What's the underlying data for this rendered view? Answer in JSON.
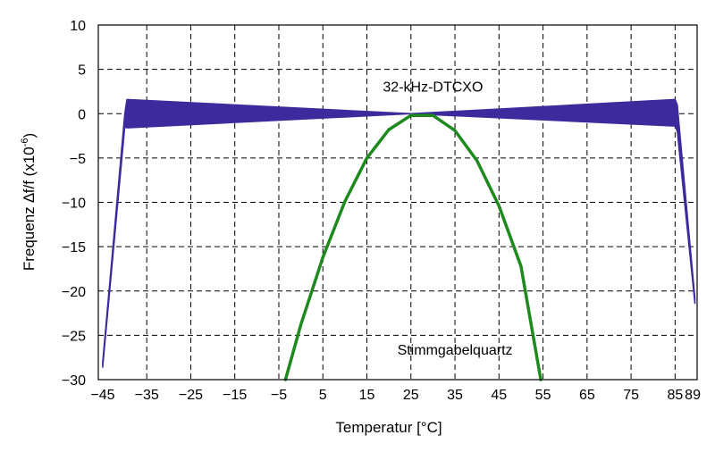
{
  "chart_data": {
    "type": "line",
    "xlabel": "Temperatur [°C]",
    "ylabel_main": "Frequenz ∆f/f (x10",
    "ylabel_exp": "-6",
    "ylabel_close": ")",
    "xlim": [
      -46,
      90
    ],
    "ylim": [
      -30,
      10
    ],
    "x_ticks": [
      -45,
      -35,
      -25,
      -15,
      -5,
      5,
      15,
      25,
      35,
      45,
      55,
      65,
      75,
      85
    ],
    "x_tick_labels": [
      "−45",
      "−35",
      "−25",
      "−15",
      "−5",
      "5",
      "15",
      "25",
      "35",
      "45",
      "55",
      "65",
      "75",
      "85"
    ],
    "y_ticks": [
      10,
      5,
      0,
      -5,
      -10,
      -15,
      -20,
      -25,
      -30
    ],
    "y_tick_labels": [
      "10",
      "5",
      "0",
      "−5",
      "−10",
      "−15",
      "−20",
      "−25",
      "−30"
    ],
    "extra_x_tick_label": "89",
    "extra_x_tick_value": 89,
    "grid": true,
    "series": [
      {
        "name": "32-kHz-DTCXO",
        "color": "#3d2b9e",
        "band": true,
        "x": [
          -45,
          -40,
          -39.5,
          25,
          85,
          85.5,
          89.5
        ],
        "y_upper": [
          -28.0,
          0.0,
          1.6,
          0.0,
          1.6,
          1.0,
          -20.8
        ],
        "y_lower": [
          -28.6,
          -1.5,
          -1.6,
          0.0,
          -1.4,
          -2.0,
          -21.4
        ]
      },
      {
        "name": "Stimmgabelquartz",
        "color": "#1e8a1e",
        "x": [
          -3.5,
          0,
          5,
          10,
          15,
          20,
          25,
          30,
          35,
          40,
          45,
          50,
          54.5
        ],
        "y": [
          -30,
          -23.8,
          -16.2,
          -9.9,
          -5.0,
          -1.8,
          -0.2,
          -0.2,
          -1.9,
          -5.3,
          -10.4,
          -17.2,
          -30
        ]
      }
    ],
    "annotations": [
      {
        "text": "32-kHz-DTCXO",
        "x": 30,
        "y": 2.5
      },
      {
        "text": "Stimmgabelquartz",
        "x": 35,
        "y": -27.2
      }
    ]
  }
}
